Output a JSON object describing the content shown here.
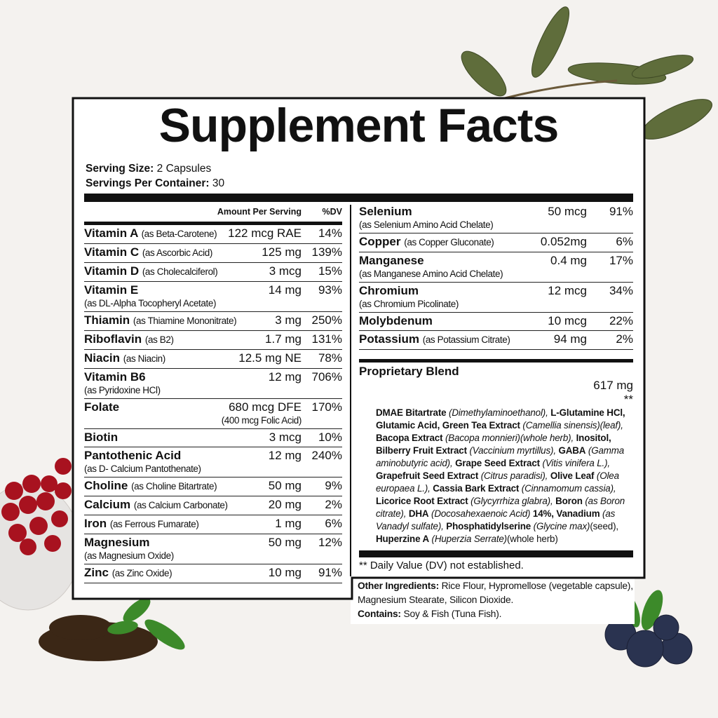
{
  "title": "Supplement Facts",
  "serving": [
    {
      "label": "Serving Size:",
      "value": "2 Capsules"
    },
    {
      "label": "Servings Per Container:",
      "value": "30"
    }
  ],
  "header": {
    "amount": "Amount Per Serving",
    "dv": "%DV"
  },
  "left_rows": [
    {
      "name": "Vitamin A",
      "note": "(as Beta-Carotene)",
      "amount": "122 mcg RAE",
      "dv": "14%"
    },
    {
      "name": "Vitamin C",
      "note": "(as Ascorbic Acid)",
      "amount": "125 mg",
      "dv": "139%"
    },
    {
      "name": "Vitamin D",
      "note": "(as Cholecalciferol)",
      "amount": "3 mcg",
      "dv": "15%"
    },
    {
      "name": "Vitamin E",
      "detail": "(as DL-Alpha Tocopheryl Acetate)",
      "amount": "14 mg",
      "dv": "93%"
    },
    {
      "name": "Thiamin",
      "note": "(as Thiamine Mononitrate)",
      "amount": "3 mg",
      "dv": "250%"
    },
    {
      "name": "Riboflavin",
      "note": "(as B2)",
      "amount": "1.7 mg",
      "dv": "131%"
    },
    {
      "name": "Niacin",
      "note": "(as Niacin)",
      "amount": "12.5 mg NE",
      "dv": "78%"
    },
    {
      "name": "Vitamin B6",
      "detail": "(as Pyridoxine HCl)",
      "amount": "12 mg",
      "dv": "706%"
    },
    {
      "name": "Folate",
      "amount": "680 mcg DFE",
      "amount_note": "(400 mcg Folic Acid)",
      "dv": "170%"
    },
    {
      "name": "Biotin",
      "amount": "3 mcg",
      "dv": "10%"
    },
    {
      "name": "Pantothenic Acid",
      "detail": "(as D- Calcium Pantothenate)",
      "amount": "12 mg",
      "dv": "240%"
    },
    {
      "name": "Choline",
      "note": "(as Choline Bitartrate)",
      "amount": "50 mg",
      "dv": "9%"
    },
    {
      "name": "Calcium",
      "note": "(as Calcium Carbonate)",
      "amount": "20 mg",
      "dv": "2%"
    },
    {
      "name": "Iron",
      "note": "(as Ferrous Fumarate)",
      "amount": "1 mg",
      "dv": "6%"
    },
    {
      "name": "Magnesium",
      "detail": "(as Magnesium Oxide)",
      "amount": "50 mg",
      "dv": "12%"
    },
    {
      "name": "Zinc",
      "note": "(as Zinc Oxide)",
      "amount": "10 mg",
      "dv": "91%"
    }
  ],
  "right_rows": [
    {
      "name": "Selenium",
      "detail": "(as Selenium Amino Acid Chelate)",
      "amount": "50 mcg",
      "dv": "91%"
    },
    {
      "name": "Copper",
      "note": "(as Copper Gluconate)",
      "amount": "0.052mg",
      "dv": "6%"
    },
    {
      "name": "Manganese",
      "detail": "(as Manganese Amino Acid Chelate)",
      "amount": "0.4 mg",
      "dv": "17%"
    },
    {
      "name": "Chromium",
      "detail": "(as Chromium Picolinate)",
      "amount": "12 mcg",
      "dv": "34%"
    },
    {
      "name": "Molybdenum",
      "amount": "10 mcg",
      "dv": "22%"
    },
    {
      "name": "Potassium",
      "note": "(as Potassium Citrate)",
      "amount": "94 mg",
      "dv": "2%"
    }
  ],
  "blend": {
    "name": "Proprietary Blend",
    "amount": "617 mg",
    "dv": "**",
    "ingredients": [
      {
        "text": "DMAE Bitartrate",
        "style": "bold"
      },
      {
        "text": " (Dimethylaminoethanol), ",
        "style": "italic"
      },
      {
        "text": "L-Glutamine HCl, Glutamic Acid, Green Tea Extract",
        "style": "bold"
      },
      {
        "text": " (Camellia sinensis)(leaf), ",
        "style": "italic"
      },
      {
        "text": "Bacopa Extract",
        "style": "bold"
      },
      {
        "text": " (Bacopa monnieri)(whole herb), ",
        "style": "italic"
      },
      {
        "text": "Inositol, Bilberry Fruit Extract",
        "style": "bold"
      },
      {
        "text": " (Vaccinium myrtillus), ",
        "style": "italic"
      },
      {
        "text": "GABA",
        "style": "bold"
      },
      {
        "text": " (Gamma aminobutyric acid), ",
        "style": "italic"
      },
      {
        "text": "Grape Seed Extract",
        "style": "bold"
      },
      {
        "text": " (Vitis vinifera L.), ",
        "style": "italic"
      },
      {
        "text": "Grapefruit Seed Extract",
        "style": "bold"
      },
      {
        "text": " (Citrus paradisi), ",
        "style": "italic"
      },
      {
        "text": "Olive Leaf",
        "style": "bold"
      },
      {
        "text": " (Olea europaea L.), ",
        "style": "italic"
      },
      {
        "text": "Cassia Bark Extract",
        "style": "bold"
      },
      {
        "text": " (Cinnamomum cassia), ",
        "style": "italic"
      },
      {
        "text": "Licorice Root Extract",
        "style": "bold"
      },
      {
        "text": " (Glycyrrhiza glabra), ",
        "style": "italic"
      },
      {
        "text": "Boron",
        "style": "bold"
      },
      {
        "text": " (as Boron citrate), ",
        "style": "italic"
      },
      {
        "text": "DHA",
        "style": "bold"
      },
      {
        "text": " (Docosahexaenoic Acid) ",
        "style": "italic"
      },
      {
        "text": "14%, Vanadium",
        "style": "bold"
      },
      {
        "text": " (as Vanadyl sulfate), ",
        "style": "italic"
      },
      {
        "text": "Phosphatidylserine",
        "style": "bold"
      },
      {
        "text": " (Glycine max)",
        "style": "italic"
      },
      {
        "text": "(seed), ",
        "style": "plain"
      },
      {
        "text": "Huperzine A",
        "style": "bold"
      },
      {
        "text": " (Huperzia Serrate)",
        "style": "italic"
      },
      {
        "text": "(whole herb)",
        "style": "plain"
      }
    ]
  },
  "footnote": "** Daily Value (DV) not established.",
  "other": [
    {
      "label": "Other Ingredients:",
      "value": "Rice Flour, Hypromellose (vegetable capsule), Magnesium Stearate, Silicon Dioxide."
    },
    {
      "label": "Contains:",
      "value": "Soy & Fish (Tuna Fish)."
    }
  ]
}
